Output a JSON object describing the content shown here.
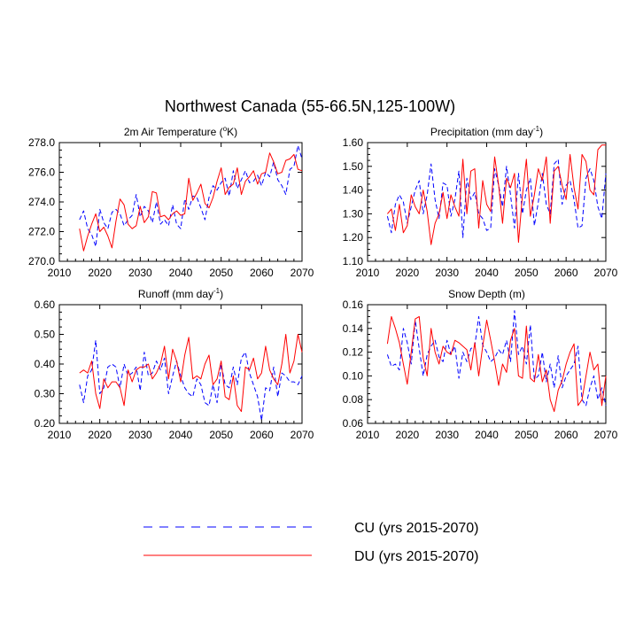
{
  "title": "Northwest Canada (55-66.5N,125-100W)",
  "legend": [
    {
      "label": "CU (yrs 2015-2070)",
      "color": "#0000ff",
      "dashed": true
    },
    {
      "label": "DU (yrs 2015-2070)",
      "color": "#ff0000",
      "dashed": false
    }
  ],
  "chart_data": [
    {
      "type": "line",
      "title_pre": "2m Air Temperature (",
      "title_sup": "o",
      "title_post": "K)",
      "xlim": [
        2010,
        2070
      ],
      "xticks": [
        "2010",
        "2020",
        "2030",
        "2040",
        "2050",
        "2060",
        "2070"
      ],
      "ylim": [
        270.0,
        278.0
      ],
      "yticks": [
        "270.0",
        "272.0",
        "274.0",
        "276.0",
        "278.0"
      ],
      "x_start": 2015,
      "series": [
        {
          "name": "CU (yrs 2015-2070)",
          "values": [
            272.8,
            273.4,
            272.2,
            271.8,
            271.0,
            273.5,
            272.6,
            272.2,
            273.3,
            273.5,
            273.2,
            272.4,
            272.8,
            273.1,
            274.5,
            273.0,
            273.7,
            273.4,
            272.6,
            274.0,
            272.5,
            272.8,
            272.4,
            273.8,
            272.5,
            272.2,
            274.2,
            273.5,
            274.4,
            274.3,
            273.6,
            272.8,
            274.3,
            275.1,
            274.8,
            275.3,
            275.6,
            274.4,
            276.1,
            274.9,
            275.5,
            276.1,
            275.3,
            275.4,
            275.8,
            275.1,
            276.0,
            275.7,
            276.7,
            275.5,
            275.1,
            274.5,
            276.2,
            276.4,
            277.8,
            276.9
          ]
        },
        {
          "name": "DU (yrs 2015-2070)",
          "values": [
            272.2,
            270.7,
            271.7,
            272.5,
            273.2,
            272.0,
            272.3,
            271.7,
            270.9,
            272.7,
            274.2,
            273.8,
            272.5,
            272.2,
            272.4,
            273.7,
            272.6,
            273.0,
            274.7,
            274.6,
            273.0,
            273.1,
            272.8,
            273.2,
            273.4,
            273.1,
            273.2,
            275.6,
            274.1,
            274.6,
            275.2,
            273.9,
            273.6,
            274.3,
            275.4,
            276.3,
            274.5,
            275.0,
            275.2,
            276.3,
            274.5,
            275.4,
            275.7,
            276.1,
            275.2,
            275.9,
            276.0,
            277.3,
            276.7,
            275.9,
            276.0,
            276.8,
            276.9,
            277.2,
            276.2,
            276.1
          ]
        }
      ]
    },
    {
      "type": "line",
      "title_pre": "Precipitation (mm day",
      "title_sup": "-1",
      "title_post": ")",
      "xlim": [
        2010,
        2070
      ],
      "xticks": [
        "2010",
        "2020",
        "2030",
        "2040",
        "2050",
        "2060",
        "2070"
      ],
      "ylim": [
        1.1,
        1.6
      ],
      "yticks": [
        "1.10",
        "1.20",
        "1.30",
        "1.40",
        "1.50",
        "1.60"
      ],
      "x_start": 2015,
      "series": [
        {
          "name": "CU (yrs 2015-2070)",
          "values": [
            1.29,
            1.22,
            1.34,
            1.38,
            1.35,
            1.26,
            1.33,
            1.4,
            1.44,
            1.3,
            1.38,
            1.51,
            1.36,
            1.28,
            1.43,
            1.42,
            1.29,
            1.36,
            1.48,
            1.2,
            1.45,
            1.36,
            1.39,
            1.3,
            1.28,
            1.23,
            1.24,
            1.49,
            1.42,
            1.33,
            1.5,
            1.38,
            1.24,
            1.47,
            1.3,
            1.4,
            1.45,
            1.25,
            1.35,
            1.47,
            1.34,
            1.3,
            1.51,
            1.53,
            1.34,
            1.42,
            1.44,
            1.36,
            1.24,
            1.25,
            1.45,
            1.49,
            1.44,
            1.33,
            1.28,
            1.47
          ]
        },
        {
          "name": "DU (yrs 2015-2070)",
          "values": [
            1.3,
            1.32,
            1.23,
            1.34,
            1.22,
            1.25,
            1.38,
            1.33,
            1.3,
            1.4,
            1.31,
            1.17,
            1.26,
            1.3,
            1.39,
            1.28,
            1.38,
            1.33,
            1.29,
            1.53,
            1.3,
            1.48,
            1.49,
            1.24,
            1.44,
            1.34,
            1.31,
            1.54,
            1.42,
            1.26,
            1.45,
            1.41,
            1.47,
            1.18,
            1.38,
            1.53,
            1.29,
            1.38,
            1.49,
            1.44,
            1.54,
            1.26,
            1.48,
            1.5,
            1.42,
            1.36,
            1.55,
            1.41,
            1.32,
            1.55,
            1.52,
            1.4,
            1.38,
            1.57,
            1.59,
            1.59
          ]
        }
      ]
    },
    {
      "type": "line",
      "title_pre": "Runoff (mm day",
      "title_sup": "-1",
      "title_post": ")",
      "xlim": [
        2010,
        2070
      ],
      "xticks": [
        "2010",
        "2020",
        "2030",
        "2040",
        "2050",
        "2060",
        "2070"
      ],
      "ylim": [
        0.2,
        0.6
      ],
      "yticks": [
        "0.20",
        "0.30",
        "0.40",
        "0.50",
        "0.60"
      ],
      "x_start": 2015,
      "series": [
        {
          "name": "CU (yrs 2015-2070)",
          "values": [
            0.33,
            0.27,
            0.36,
            0.38,
            0.48,
            0.3,
            0.32,
            0.39,
            0.4,
            0.39,
            0.32,
            0.4,
            0.36,
            0.37,
            0.39,
            0.31,
            0.44,
            0.36,
            0.37,
            0.41,
            0.38,
            0.42,
            0.3,
            0.36,
            0.41,
            0.36,
            0.32,
            0.3,
            0.29,
            0.35,
            0.33,
            0.27,
            0.26,
            0.33,
            0.27,
            0.4,
            0.33,
            0.32,
            0.39,
            0.33,
            0.42,
            0.44,
            0.37,
            0.33,
            0.29,
            0.21,
            0.32,
            0.31,
            0.39,
            0.29,
            0.37,
            0.36,
            0.34,
            0.34,
            0.33,
            0.36
          ]
        },
        {
          "name": "DU (yrs 2015-2070)",
          "values": [
            0.37,
            0.38,
            0.37,
            0.41,
            0.3,
            0.25,
            0.35,
            0.32,
            0.34,
            0.34,
            0.32,
            0.26,
            0.38,
            0.34,
            0.38,
            0.39,
            0.39,
            0.4,
            0.35,
            0.37,
            0.4,
            0.46,
            0.35,
            0.45,
            0.41,
            0.34,
            0.43,
            0.49,
            0.35,
            0.36,
            0.35,
            0.4,
            0.43,
            0.33,
            0.35,
            0.41,
            0.29,
            0.28,
            0.36,
            0.26,
            0.24,
            0.39,
            0.38,
            0.42,
            0.35,
            0.37,
            0.46,
            0.38,
            0.35,
            0.33,
            0.4,
            0.5,
            0.37,
            0.41,
            0.5,
            0.44
          ]
        }
      ]
    },
    {
      "type": "line",
      "title_pre": "Snow Depth (m)",
      "title_sup": "",
      "title_post": "",
      "xlim": [
        2010,
        2070
      ],
      "xticks": [
        "2010",
        "2020",
        "2030",
        "2040",
        "2050",
        "2060",
        "2070"
      ],
      "ylim": [
        0.06,
        0.16
      ],
      "yticks": [
        "0.06",
        "0.08",
        "0.10",
        "0.12",
        "0.14",
        "0.16"
      ],
      "x_start": 2015,
      "series": [
        {
          "name": "CU (yrs 2015-2070)",
          "values": [
            0.118,
            0.108,
            0.11,
            0.105,
            0.14,
            0.128,
            0.11,
            0.147,
            0.123,
            0.1,
            0.118,
            0.125,
            0.13,
            0.116,
            0.112,
            0.13,
            0.118,
            0.125,
            0.098,
            0.12,
            0.112,
            0.123,
            0.125,
            0.15,
            0.126,
            0.12,
            0.112,
            0.115,
            0.122,
            0.118,
            0.13,
            0.112,
            0.155,
            0.118,
            0.125,
            0.11,
            0.143,
            0.097,
            0.1,
            0.12,
            0.095,
            0.11,
            0.09,
            0.117,
            0.09,
            0.1,
            0.105,
            0.11,
            0.125,
            0.08,
            0.075,
            0.09,
            0.1,
            0.08,
            0.09,
            0.075
          ]
        },
        {
          "name": "DU (yrs 2015-2070)",
          "values": [
            0.127,
            0.15,
            0.14,
            0.128,
            0.11,
            0.093,
            0.12,
            0.148,
            0.15,
            0.115,
            0.1,
            0.14,
            0.12,
            0.11,
            0.125,
            0.12,
            0.118,
            0.13,
            0.128,
            0.125,
            0.122,
            0.105,
            0.128,
            0.1,
            0.125,
            0.147,
            0.13,
            0.112,
            0.092,
            0.11,
            0.103,
            0.13,
            0.14,
            0.1,
            0.098,
            0.142,
            0.098,
            0.095,
            0.118,
            0.095,
            0.105,
            0.08,
            0.07,
            0.088,
            0.096,
            0.11,
            0.12,
            0.127,
            0.075,
            0.08,
            0.1,
            0.12,
            0.105,
            0.11,
            0.075,
            0.1
          ]
        }
      ]
    }
  ]
}
